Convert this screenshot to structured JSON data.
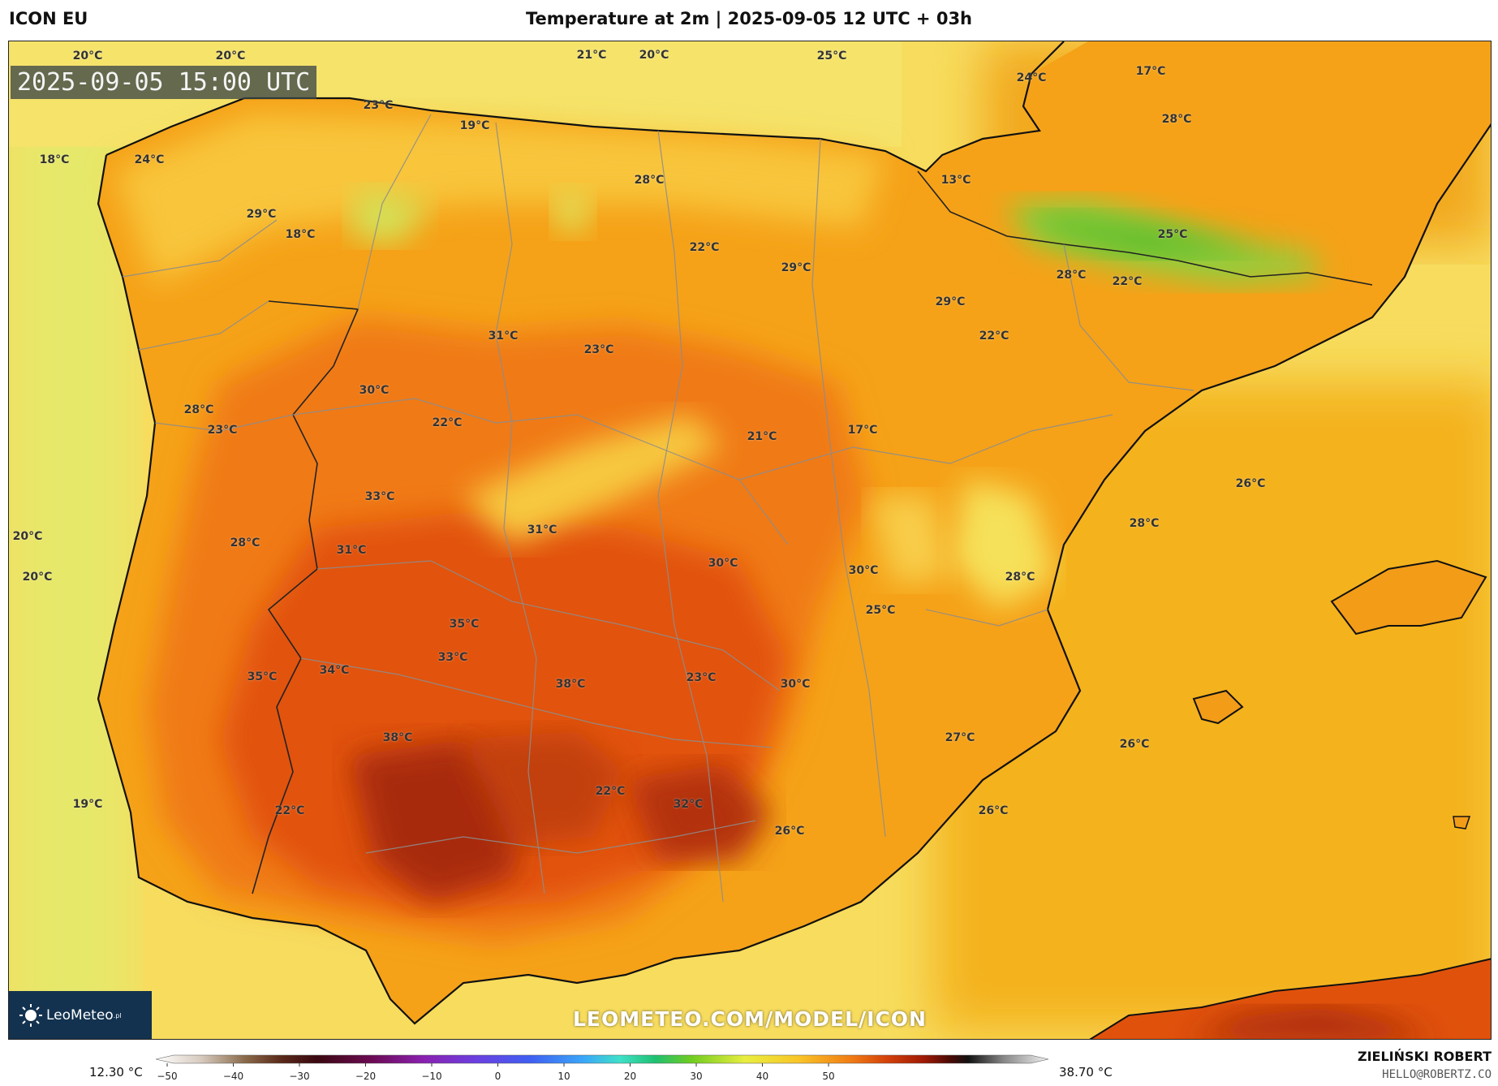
{
  "header": {
    "model": "ICON EU",
    "title": "Temperature at 2m | 2025-09-05 12 UTC + 03h"
  },
  "map": {
    "timestamp": "2025-09-05 15:00 UTC",
    "watermark": "LEOMETEO.COM/MODEL/ICON",
    "logo_text": "LeoMeteo",
    "logo_suffix": ".pl",
    "labels": [
      {
        "text": "20°C"
      },
      {
        "text": "20°C"
      },
      {
        "text": "21°C"
      },
      {
        "text": "20°C"
      },
      {
        "text": "25°C"
      },
      {
        "text": "24°C"
      },
      {
        "text": "17°C"
      },
      {
        "text": "23°C"
      },
      {
        "text": "19°C"
      },
      {
        "text": "28°C"
      },
      {
        "text": "18°C"
      },
      {
        "text": "24°C"
      },
      {
        "text": "28°C"
      },
      {
        "text": "13°C"
      },
      {
        "text": "29°C"
      },
      {
        "text": "18°C"
      },
      {
        "text": "22°C"
      },
      {
        "text": "29°C"
      },
      {
        "text": "25°C"
      },
      {
        "text": "28°C"
      },
      {
        "text": "22°C"
      },
      {
        "text": "29°C"
      },
      {
        "text": "31°C"
      },
      {
        "text": "22°C"
      },
      {
        "text": "23°C"
      },
      {
        "text": "30°C"
      },
      {
        "text": "28°C"
      },
      {
        "text": "23°C"
      },
      {
        "text": "22°C"
      },
      {
        "text": "21°C"
      },
      {
        "text": "17°C"
      },
      {
        "text": "26°C"
      },
      {
        "text": "33°C"
      },
      {
        "text": "28°C"
      },
      {
        "text": "20°C"
      },
      {
        "text": "28°C"
      },
      {
        "text": "31°C"
      },
      {
        "text": "31°C"
      },
      {
        "text": "30°C"
      },
      {
        "text": "30°C"
      },
      {
        "text": "20°C"
      },
      {
        "text": "28°C"
      },
      {
        "text": "25°C"
      },
      {
        "text": "35°C"
      },
      {
        "text": "33°C"
      },
      {
        "text": "35°C"
      },
      {
        "text": "34°C"
      },
      {
        "text": "38°C"
      },
      {
        "text": "23°C"
      },
      {
        "text": "30°C"
      },
      {
        "text": "27°C"
      },
      {
        "text": "26°C"
      },
      {
        "text": "38°C"
      },
      {
        "text": "22°C"
      },
      {
        "text": "32°C"
      },
      {
        "text": "19°C"
      },
      {
        "text": "22°C"
      },
      {
        "text": "26°C"
      },
      {
        "text": "26°C"
      }
    ]
  },
  "colorbar": {
    "min_label": "12.30 °C",
    "max_label": "38.70 °C",
    "ticks": [
      "−50",
      "−40",
      "−30",
      "−20",
      "−10",
      "0",
      "10",
      "20",
      "30",
      "40",
      "50"
    ]
  },
  "footer": {
    "author": "ZIELIŃSKI ROBERT",
    "email": "HELLO@ROBERTZ.CO"
  }
}
